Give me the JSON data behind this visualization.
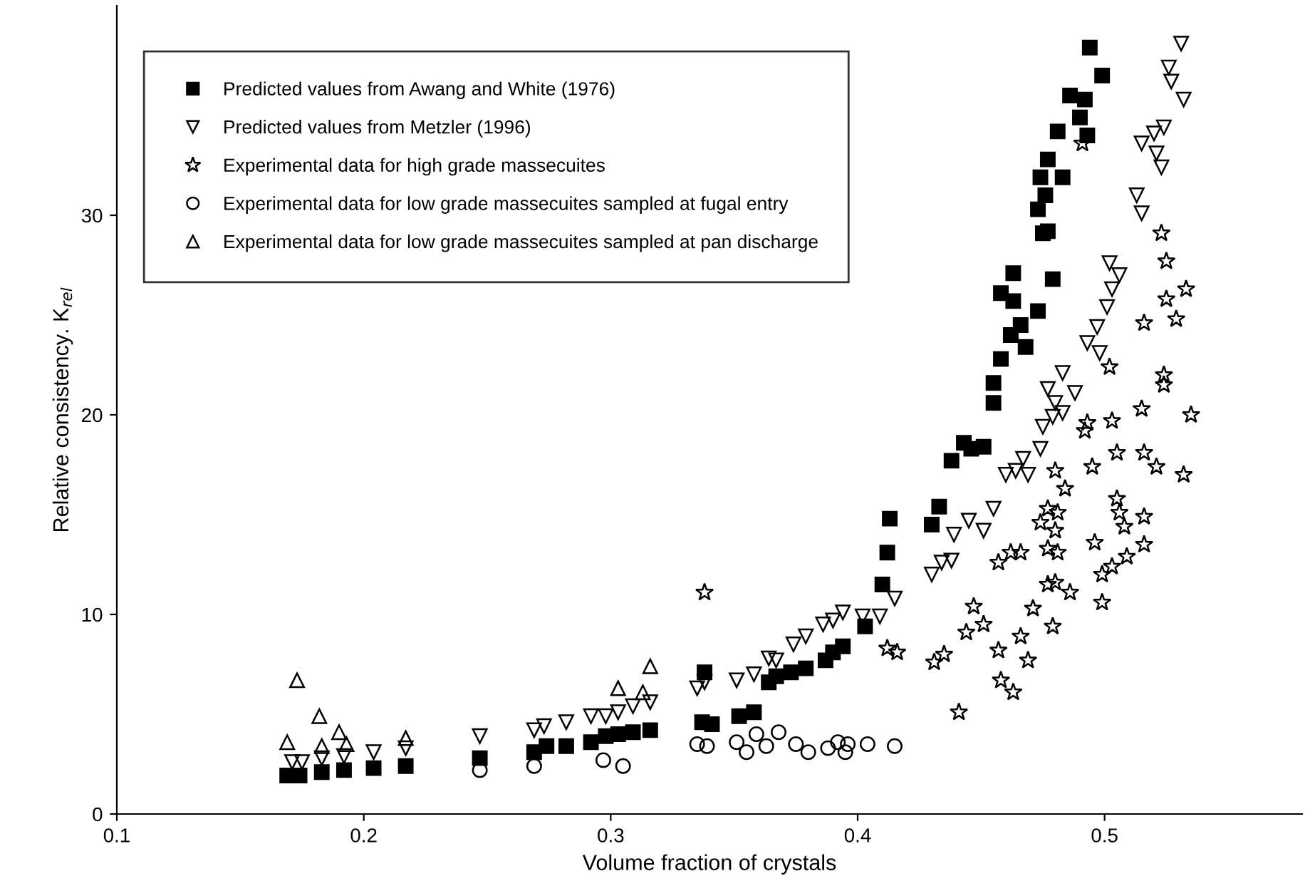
{
  "chart_data": {
    "type": "scatter",
    "xlabel": "Volume fraction of crystals",
    "ylabel": "Relative consistency. K$_{rel}$",
    "xlim": [
      0.1,
      0.58
    ],
    "ylim": [
      0,
      40.5
    ],
    "xticks": [
      0.1,
      0.2,
      0.3,
      0.4,
      0.5
    ],
    "yticks": [
      0,
      10,
      20,
      30
    ],
    "grid": false,
    "legend": "top left",
    "series": [
      {
        "name": "Predicted values from Awang and White (1976)",
        "color": "#000000",
        "marker": "square",
        "x": [
          0.169,
          0.174,
          0.183,
          0.192,
          0.204,
          0.217,
          0.247,
          0.269,
          0.274,
          0.282,
          0.292,
          0.298,
          0.303,
          0.309,
          0.316,
          0.337,
          0.341,
          0.352,
          0.358,
          0.338,
          0.364,
          0.367,
          0.373,
          0.379,
          0.387,
          0.39,
          0.394,
          0.403,
          0.41,
          0.412,
          0.413,
          0.455,
          0.443,
          0.446,
          0.451,
          0.438,
          0.433,
          0.43,
          0.494,
          0.499,
          0.486,
          0.492,
          0.49,
          0.481,
          0.493,
          0.477,
          0.474,
          0.483,
          0.476,
          0.473,
          0.475,
          0.477,
          0.463,
          0.479,
          0.458,
          0.463,
          0.473,
          0.466,
          0.462,
          0.468,
          0.458,
          0.455
        ],
        "values": [
          1.93,
          1.93,
          2.1,
          2.2,
          2.3,
          2.4,
          2.8,
          3.1,
          3.4,
          3.4,
          3.6,
          3.9,
          4.0,
          4.1,
          4.2,
          4.6,
          4.5,
          4.9,
          5.1,
          7.1,
          6.6,
          6.9,
          7.1,
          7.3,
          7.7,
          8.1,
          8.4,
          9.4,
          11.5,
          13.1,
          14.8,
          20.6,
          18.6,
          18.3,
          18.4,
          17.7,
          15.4,
          14.5,
          38.4,
          37.0,
          36.0,
          35.8,
          34.9,
          34.2,
          34.0,
          32.8,
          31.9,
          31.9,
          31.0,
          30.3,
          29.1,
          29.2,
          27.1,
          26.8,
          26.1,
          25.7,
          25.2,
          24.5,
          24.0,
          23.4,
          22.8,
          21.6
        ]
      },
      {
        "name": "Predicted values from Metzler (1996)",
        "color": "#000000",
        "marker": "triangle_down",
        "x": [
          0.171,
          0.175,
          0.183,
          0.192,
          0.204,
          0.217,
          0.247,
          0.269,
          0.273,
          0.282,
          0.292,
          0.298,
          0.303,
          0.309,
          0.316,
          0.335,
          0.338,
          0.351,
          0.358,
          0.364,
          0.367,
          0.374,
          0.379,
          0.386,
          0.39,
          0.394,
          0.402,
          0.409,
          0.415,
          0.43,
          0.434,
          0.438,
          0.439,
          0.445,
          0.451,
          0.455,
          0.46,
          0.464,
          0.469,
          0.467,
          0.474,
          0.475,
          0.479,
          0.483,
          0.48,
          0.483,
          0.477,
          0.488,
          0.497,
          0.493,
          0.498,
          0.502,
          0.506,
          0.503,
          0.501,
          0.513,
          0.515,
          0.515,
          0.52,
          0.524,
          0.521,
          0.523,
          0.526,
          0.527,
          0.532,
          0.531
        ],
        "values": [
          2.6,
          2.6,
          2.8,
          2.9,
          3.1,
          3.3,
          3.9,
          4.2,
          4.4,
          4.6,
          4.9,
          4.9,
          5.1,
          5.4,
          5.6,
          6.3,
          6.6,
          6.7,
          7.0,
          7.8,
          7.7,
          8.5,
          8.9,
          9.5,
          9.7,
          10.1,
          9.9,
          9.9,
          10.8,
          12.0,
          12.6,
          12.7,
          14.0,
          14.7,
          14.2,
          15.3,
          17.0,
          17.2,
          17.0,
          17.8,
          18.3,
          19.4,
          19.9,
          20.1,
          20.6,
          22.1,
          21.3,
          21.1,
          24.4,
          23.6,
          23.1,
          27.6,
          27.0,
          26.3,
          25.4,
          31.0,
          30.1,
          33.6,
          34.1,
          34.4,
          33.1,
          32.4,
          37.4,
          36.7,
          35.8,
          38.6
        ]
      },
      {
        "name": "Experimental data for high grade massecuites",
        "color": "#000000",
        "marker": "star",
        "x": [
          0.338,
          0.412,
          0.416,
          0.515,
          0.535,
          0.503,
          0.492,
          0.48,
          0.484,
          0.495,
          0.505,
          0.516,
          0.521,
          0.532,
          0.505,
          0.506,
          0.508,
          0.516,
          0.477,
          0.481,
          0.474,
          0.48,
          0.496,
          0.516,
          0.509,
          0.503,
          0.499,
          0.499,
          0.462,
          0.466,
          0.457,
          0.477,
          0.481,
          0.477,
          0.48,
          0.486,
          0.471,
          0.479,
          0.447,
          0.444,
          0.451,
          0.466,
          0.457,
          0.469,
          0.431,
          0.435,
          0.458,
          0.463,
          0.441,
          0.491,
          0.523,
          0.525,
          0.525,
          0.533,
          0.529,
          0.516,
          0.524,
          0.524,
          0.502,
          0.493
        ],
        "values": [
          11.1,
          8.3,
          8.1,
          20.3,
          20.0,
          19.7,
          19.2,
          17.2,
          16.3,
          17.4,
          18.1,
          18.1,
          17.4,
          17.0,
          15.8,
          15.1,
          14.4,
          14.9,
          15.3,
          15.1,
          14.6,
          14.2,
          13.6,
          13.5,
          12.9,
          12.4,
          12.0,
          10.6,
          13.1,
          13.1,
          12.6,
          13.3,
          13.1,
          11.5,
          11.6,
          11.1,
          10.3,
          9.4,
          10.4,
          9.1,
          9.5,
          8.9,
          8.2,
          7.7,
          7.6,
          8.0,
          6.7,
          6.1,
          5.1,
          33.6,
          29.1,
          27.7,
          25.8,
          26.3,
          24.8,
          24.6,
          22.0,
          21.5,
          22.4,
          19.6
        ]
      },
      {
        "name": "Experimental data for low grade massecuites sampled at fugal entry",
        "color": "#000000",
        "marker": "circle",
        "x": [
          0.247,
          0.269,
          0.297,
          0.305,
          0.335,
          0.339,
          0.351,
          0.355,
          0.359,
          0.363,
          0.368,
          0.375,
          0.38,
          0.388,
          0.392,
          0.395,
          0.396,
          0.404,
          0.415
        ],
        "values": [
          2.2,
          2.4,
          2.7,
          2.4,
          3.5,
          3.4,
          3.6,
          3.1,
          4.0,
          3.4,
          4.1,
          3.5,
          3.1,
          3.3,
          3.6,
          3.1,
          3.5,
          3.5,
          3.4
        ]
      },
      {
        "name": "Experimental data for low grade massecuites sampled at pan discharge",
        "color": "#000000",
        "marker": "triangle",
        "x": [
          0.173,
          0.182,
          0.19,
          0.193,
          0.169,
          0.183,
          0.217,
          0.303,
          0.316,
          0.313
        ],
        "values": [
          6.7,
          4.9,
          4.1,
          3.5,
          3.6,
          3.4,
          3.8,
          6.3,
          7.4,
          6.1
        ]
      }
    ]
  }
}
